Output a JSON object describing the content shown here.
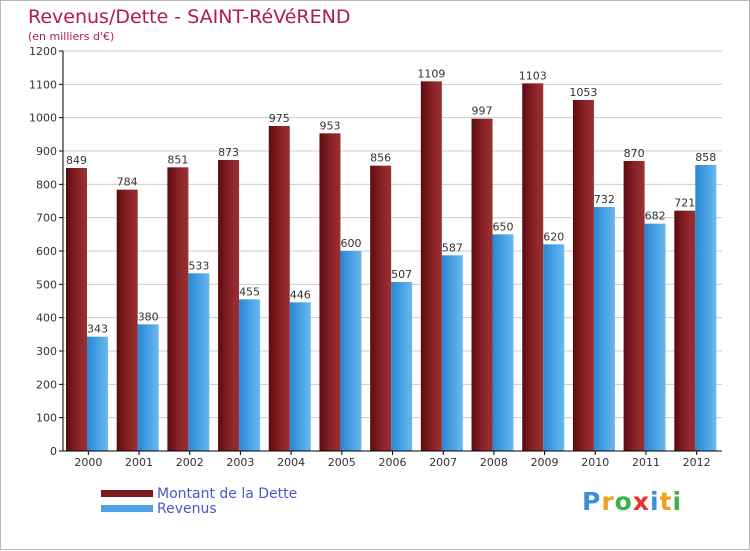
{
  "title": "Revenus/Dette - SAINT-RéVéREND",
  "subtitle": "(en milliers d'€)",
  "logo": {
    "letters": [
      {
        "ch": "P",
        "color": "#3d8fd6"
      },
      {
        "ch": "r",
        "color": "#f0a020"
      },
      {
        "ch": "o",
        "color": "#3db24a"
      },
      {
        "ch": "x",
        "color": "#e8342a"
      },
      {
        "ch": "i",
        "color": "#3d8fd6"
      },
      {
        "ch": "t",
        "color": "#f0a020"
      },
      {
        "ch": "i",
        "color": "#3db24a"
      }
    ]
  },
  "colors": {
    "debt": "#7a1a1c",
    "revenue": "#4aa3e6",
    "grid": "#cccccc",
    "axis": "#000000",
    "label": "#333333"
  },
  "chart_data": {
    "type": "bar",
    "categories": [
      "2000",
      "2001",
      "2002",
      "2003",
      "2004",
      "2005",
      "2006",
      "2007",
      "2008",
      "2009",
      "2010",
      "2011",
      "2012"
    ],
    "series": [
      {
        "name": "Montant de la Dette",
        "values": [
          849,
          784,
          851,
          873,
          975,
          953,
          856,
          1109,
          997,
          1103,
          1053,
          870,
          721
        ]
      },
      {
        "name": "Revenus",
        "values": [
          343,
          380,
          533,
          455,
          446,
          600,
          507,
          587,
          650,
          620,
          732,
          682,
          858
        ]
      }
    ],
    "yticks": [
      0,
      100,
      200,
      300,
      400,
      500,
      600,
      700,
      800,
      900,
      1000,
      1100,
      1200
    ],
    "ylim": [
      0,
      1200
    ],
    "grid": true,
    "legend": "bottom-left"
  }
}
